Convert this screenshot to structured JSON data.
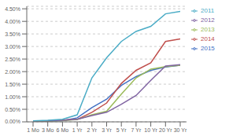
{
  "chart_data": {
    "type": "line",
    "categories": [
      "1 Mo",
      "3 Mo",
      "6 Mo",
      "1 Yr",
      "2 Yr",
      "3 Yr",
      "5 Yr",
      "7 Yr",
      "10 Yr",
      "20 Yr",
      "30 Yr"
    ],
    "series": [
      {
        "name": "2015",
        "color": "#4472C4",
        "values": [
          0.0002,
          0.0003,
          0.0005,
          0.0016,
          0.0057,
          0.009,
          0.0145,
          0.018,
          0.0205,
          0.0218,
          0.0225
        ]
      },
      {
        "name": "2014",
        "color": "#C0504D",
        "values": [
          0.0003,
          0.0004,
          0.0007,
          0.001,
          0.0038,
          0.0075,
          0.0153,
          0.0205,
          0.0235,
          0.032,
          0.033
        ]
      },
      {
        "name": "2013",
        "color": "#9BBB59",
        "values": [
          0.0002,
          0.0003,
          0.0005,
          0.0009,
          0.0028,
          0.0042,
          0.011,
          0.0175,
          0.021,
          0.022,
          0.0225
        ]
      },
      {
        "name": "2012",
        "color": "#8064A2",
        "values": [
          0.0003,
          0.0004,
          0.0006,
          0.001,
          0.0025,
          0.0038,
          0.007,
          0.0105,
          0.0165,
          0.0222,
          0.0228
        ]
      },
      {
        "name": "2011",
        "color": "#4BACC6",
        "values": [
          0.0004,
          0.0006,
          0.001,
          0.0028,
          0.0175,
          0.0255,
          0.032,
          0.036,
          0.038,
          0.043,
          0.044
        ]
      }
    ],
    "ylim": [
      0.0,
      0.046
    ],
    "yticks": [
      {
        "value": 0.0,
        "label": "0.00%"
      },
      {
        "value": 0.005,
        "label": "0.50%"
      },
      {
        "value": 0.01,
        "label": "1.00%"
      },
      {
        "value": 0.015,
        "label": "1.50%"
      },
      {
        "value": 0.02,
        "label": "2.00%"
      },
      {
        "value": 0.025,
        "label": "2.50%"
      },
      {
        "value": 0.03,
        "label": "3.00%"
      },
      {
        "value": 0.035,
        "label": "3.50%"
      },
      {
        "value": 0.04,
        "label": "4.00%"
      },
      {
        "value": 0.045,
        "label": "4.50%"
      }
    ],
    "grid": true,
    "legend": "upper right"
  }
}
